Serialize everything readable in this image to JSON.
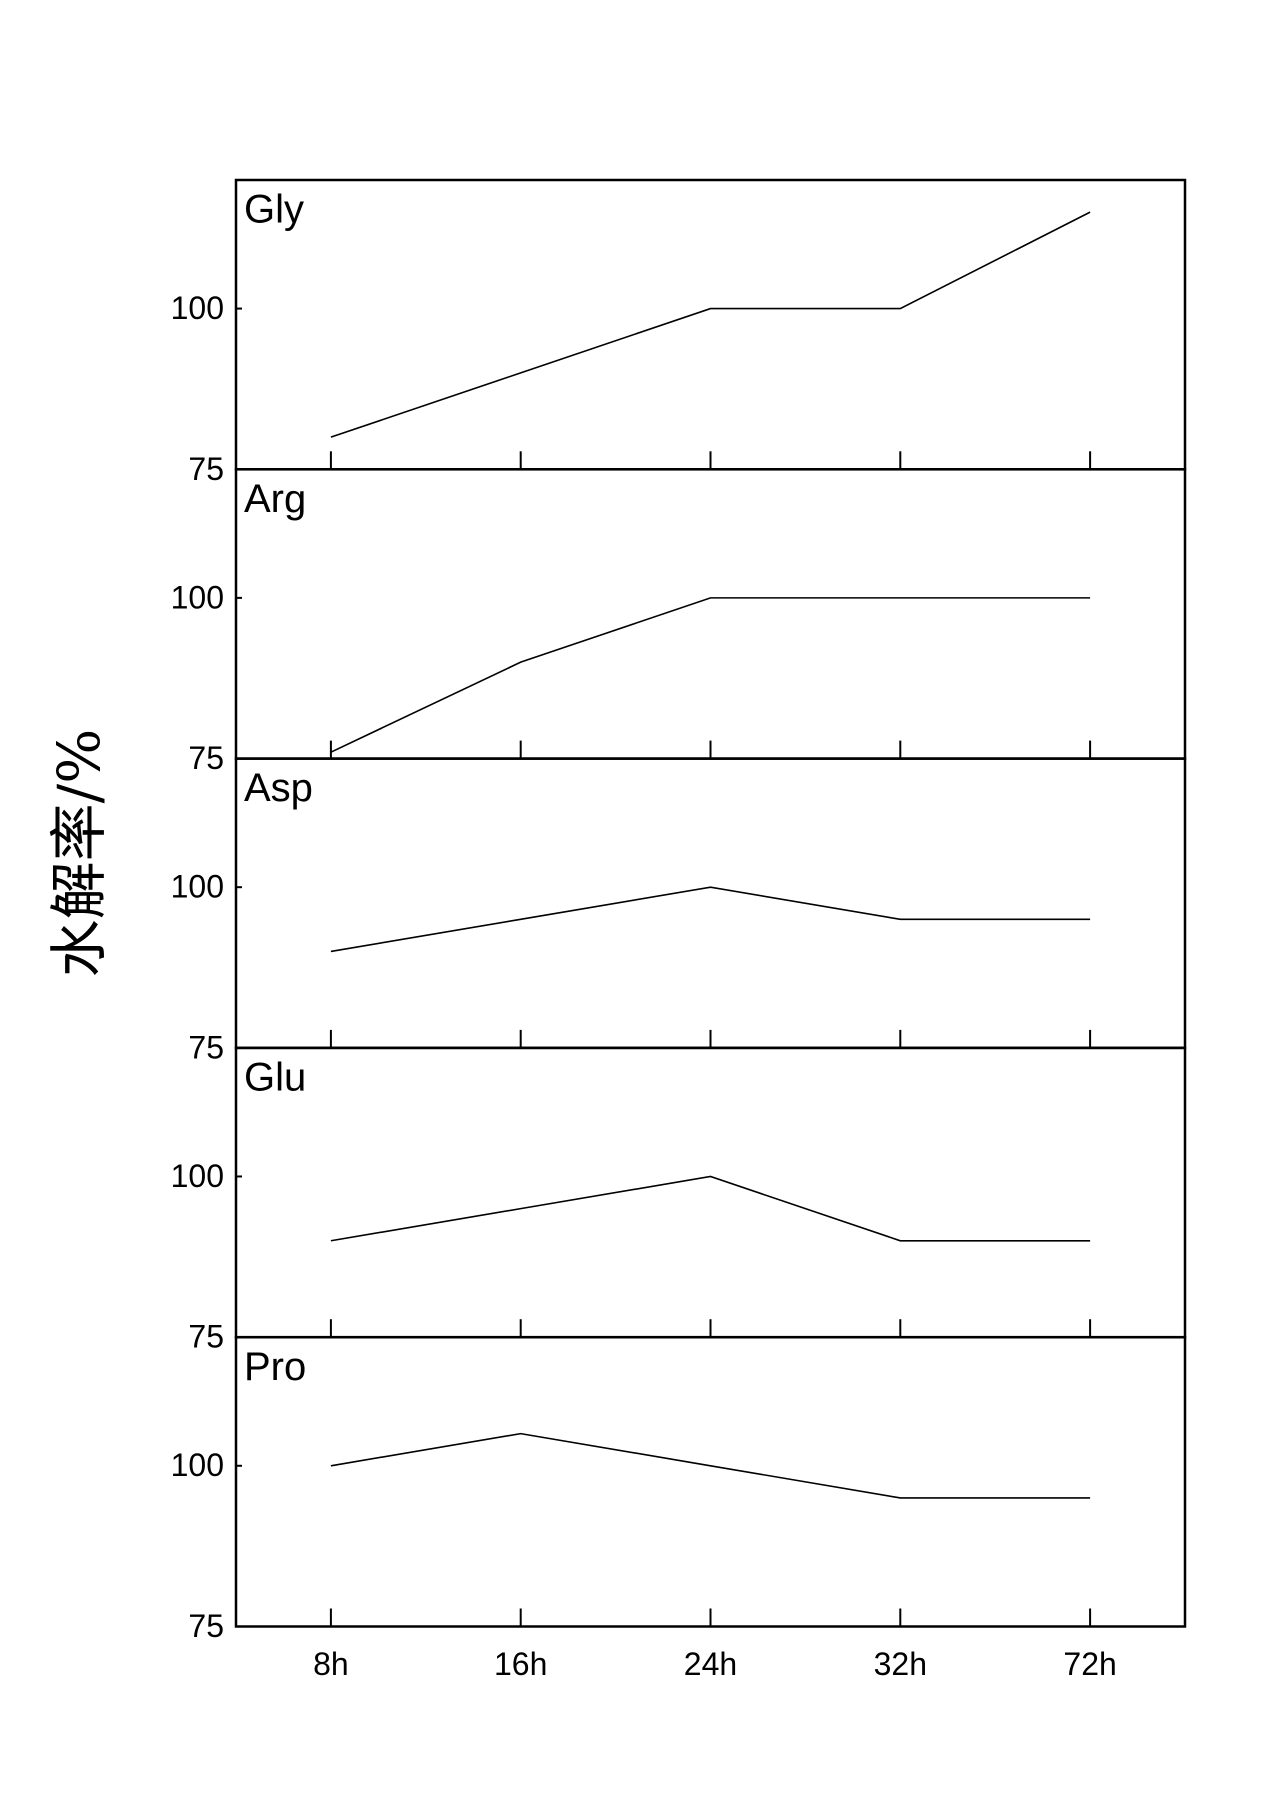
{
  "y_label": "水解率/%",
  "chart_data": [
    {
      "type": "line",
      "title": "Gly",
      "values": [
        80,
        90,
        100,
        100,
        115
      ],
      "color": "#000000",
      "ylim": [
        75,
        120
      ],
      "yticks": [
        75,
        100
      ]
    },
    {
      "type": "line",
      "title": "Arg",
      "values": [
        76,
        90,
        100,
        100,
        100
      ],
      "color": "#000000",
      "ylim": [
        75,
        120
      ],
      "yticks": [
        75,
        100
      ]
    },
    {
      "type": "line",
      "title": "Asp",
      "values": [
        90,
        95,
        100,
        95,
        95
      ],
      "color": "#000000",
      "ylim": [
        75,
        120
      ],
      "yticks": [
        75,
        100
      ]
    },
    {
      "type": "line",
      "title": "Glu",
      "values": [
        90,
        95,
        100,
        90,
        90
      ],
      "color": "#000000",
      "ylim": [
        75,
        120
      ],
      "yticks": [
        75,
        100
      ]
    },
    {
      "type": "line",
      "title": "Pro",
      "categories": [
        "8h",
        "16h",
        "24h",
        "32h",
        "72h"
      ],
      "values": [
        100,
        105,
        100,
        95,
        95
      ],
      "color": "#000000",
      "ylim": [
        75,
        120
      ],
      "yticks": [
        75,
        100
      ]
    }
  ]
}
